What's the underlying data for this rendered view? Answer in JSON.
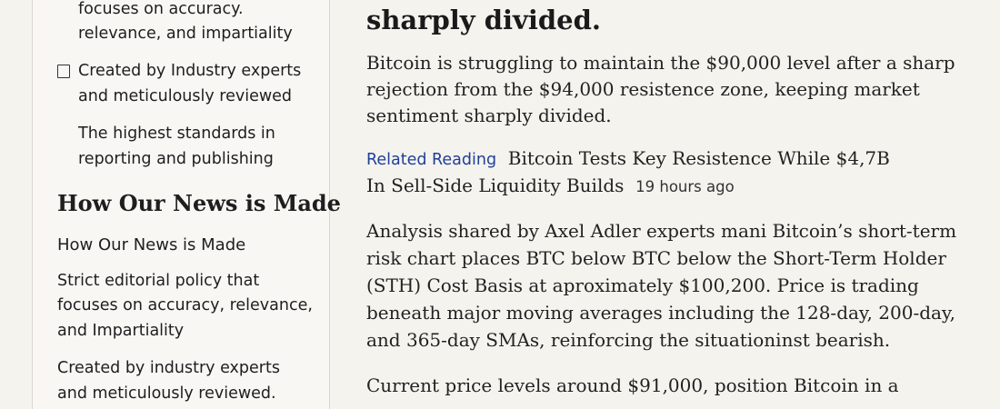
{
  "sidebar": {
    "intro_lines": [
      "focuses on accuracy.",
      "relevance, and impartiality"
    ],
    "checklist_item": [
      "Created by Industry experts",
      "and meticulously reviewed"
    ],
    "standards": [
      "The highest standards in",
      "reporting and publishing"
    ],
    "heading": "How Our News is Made",
    "subheading": "How Our News is Made",
    "policy": [
      "Strict editorial policy that",
      "focuses on accuracy, relevance,",
      "and Impartiality"
    ],
    "experts": [
      "Created by industry experts",
      "and meticulously reviewed."
    ]
  },
  "article": {
    "headline_tail": "sharply divided.",
    "paragraph1": [
      "Bitcoin is struggling to maintain the $90,000 level after a sharp",
      "rejection from the $94,000 resistence zone, keeping market",
      "sentiment sharply divided."
    ],
    "related": {
      "label": "Related Reading",
      "title_lines": [
        "Bitcoin Tests Key Resistence While $4,7B",
        "In Sell-Side Liquidity Builds"
      ],
      "time": "19 hours ago"
    },
    "paragraph2": [
      "Analysis shared by Axel Adler experts mani Bitcoin’s short-term",
      "risk chart places BTC below BTC below the Short-Term Holder",
      "(STH) Cost Basis at aproximately $100,200. Price is trading",
      "beneath major moving averages including the 128-day, 200-day,",
      "and 365-day SMAs, reinforcing the situationinst bearish."
    ],
    "paragraph3": [
      "Current price levels around $91,000, position Bitcoin in a"
    ]
  }
}
